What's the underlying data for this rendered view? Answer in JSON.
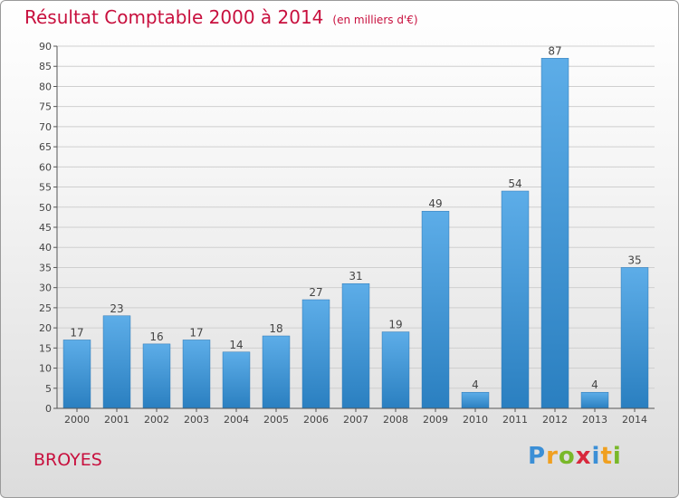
{
  "header": {
    "title": "Résultat Comptable 2000 à 2014",
    "subtitle": "(en milliers d'€)"
  },
  "footer": {
    "place": "BROYES",
    "logo_text": "Proxiti"
  },
  "colors": {
    "title": "#c8103e",
    "bar_light": "#5dade8",
    "bar_dark": "#2a7fc0"
  },
  "chart_data": {
    "type": "bar",
    "title": "Résultat Comptable 2000 à 2014",
    "subtitle": "(en milliers d'€)",
    "xlabel": "",
    "ylabel": "",
    "categories": [
      "2000",
      "2001",
      "2002",
      "2003",
      "2004",
      "2005",
      "2006",
      "2007",
      "2008",
      "2009",
      "2010",
      "2011",
      "2012",
      "2013",
      "2014"
    ],
    "values": [
      17,
      23,
      16,
      17,
      14,
      18,
      27,
      31,
      19,
      49,
      4,
      54,
      87,
      4,
      35
    ],
    "ylim": [
      0,
      90
    ],
    "yticks": [
      0,
      5,
      10,
      15,
      20,
      25,
      30,
      35,
      40,
      45,
      50,
      55,
      60,
      65,
      70,
      75,
      80,
      85,
      90
    ],
    "grid": true,
    "data_labels": true
  }
}
